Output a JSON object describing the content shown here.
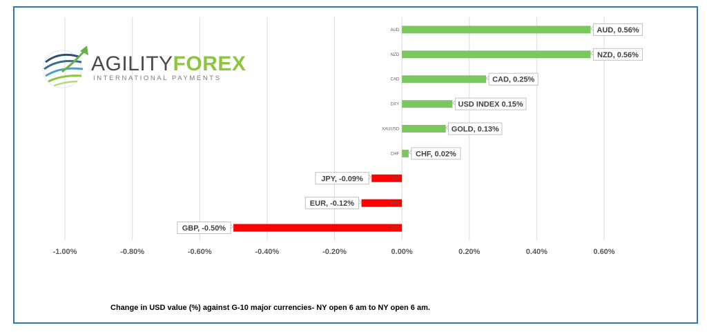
{
  "logo": {
    "word1": "AGILITY",
    "word2": "FOREX",
    "tagline": "INTERNATIONAL PAYMENTS",
    "icon": "globe-swoosh-icon"
  },
  "caption": "Change in  USD value (%)  against  G-10 major currencies- NY open 6 am to NY open 6 am.",
  "colors": {
    "positive": "#7ac75e",
    "negative": "#ff0000",
    "frame": "#2e75b6",
    "grid": "#d9d9d9"
  },
  "chart_data": {
    "type": "bar",
    "orientation": "horizontal",
    "title": "",
    "xlabel": "",
    "ylabel": "",
    "xlim": [
      -1.0,
      0.6
    ],
    "x_ticks": [
      "-1.00%",
      "-0.80%",
      "-0.60%",
      "-0.40%",
      "-0.20%",
      "0.00%",
      "0.20%",
      "0.40%",
      "0.60%"
    ],
    "x_tick_values": [
      -1.0,
      -0.8,
      -0.6,
      -0.4,
      -0.2,
      0.0,
      0.2,
      0.4,
      0.6
    ],
    "grid": "vertical",
    "categories": [
      "AUD",
      "NZD",
      "CAD",
      "DXY",
      "XAUUSD",
      "CHF",
      "JPY",
      "EUR",
      "GBP"
    ],
    "values": [
      0.56,
      0.56,
      0.25,
      0.15,
      0.13,
      0.02,
      -0.09,
      -0.12,
      -0.5
    ],
    "data_labels": [
      "AUD, 0.56%",
      "NZD, 0.56%",
      "CAD, 0.25%",
      "USD INDEX 0.15%",
      "GOLD, 0.13%",
      "CHF, 0.02%",
      "JPY, -0.09%",
      "EUR, -0.12%",
      "GBP, -0.50%"
    ]
  }
}
